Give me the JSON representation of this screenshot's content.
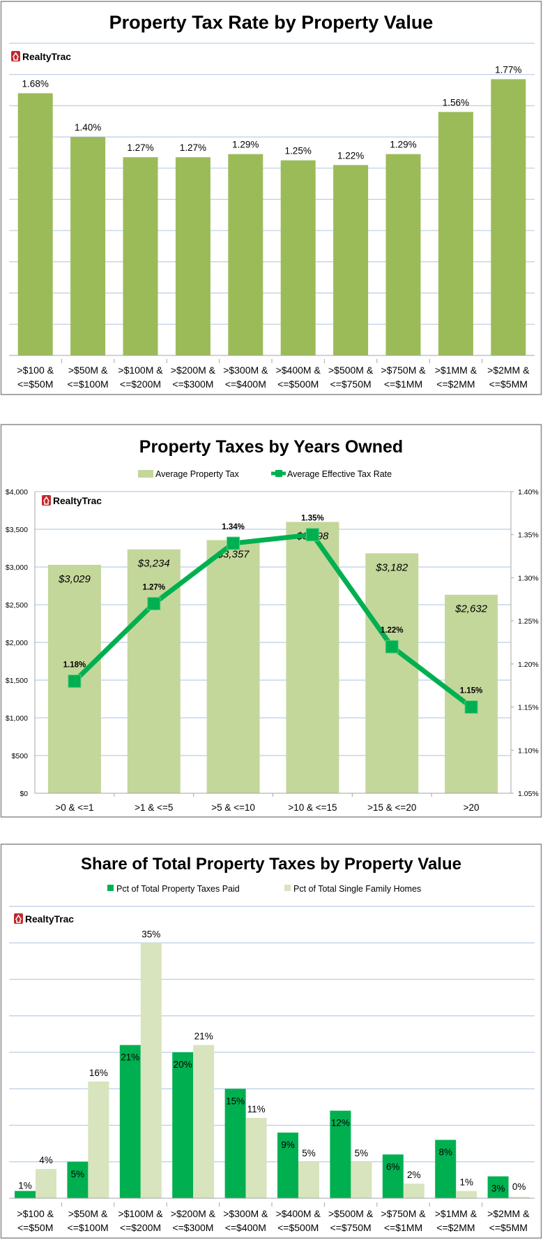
{
  "logo": {
    "text": "RealtyTrac",
    "icon": "house-icon",
    "color": "#C0282D"
  },
  "colors": {
    "gridline": "#B9CDE5",
    "axis": "#A6A6A6",
    "border": "#8C8C8C"
  },
  "chart_data": [
    {
      "type": "bar",
      "title": "Property Tax Rate by Property Value",
      "categories": [
        ">$100 & <=$50M",
        ">$50M & <=$100M",
        ">$100M & <=$200M",
        ">$200M & <=$300M",
        ">$300M & <=$400M",
        ">$400M & <=$500M",
        ">$500M & <=$750M",
        ">$750M & <=$1MM",
        ">$1MM & <=$2MM",
        ">$2MM & <=$5MM"
      ],
      "values": [
        1.68,
        1.4,
        1.27,
        1.27,
        1.29,
        1.25,
        1.22,
        1.29,
        1.56,
        1.77
      ],
      "data_labels": [
        "1.68%",
        "1.40%",
        "1.27%",
        "1.27%",
        "1.29%",
        "1.25%",
        "1.22%",
        "1.29%",
        "1.56%",
        "1.77%"
      ],
      "ylim": [
        0,
        2.0
      ],
      "ytick_step": 0.2,
      "y_axis_labels_shown": false,
      "grid": true,
      "color": "#9BBB59"
    },
    {
      "type": "bar+line",
      "title": "Property Taxes by Years Owned",
      "categories": [
        ">0 & <=1",
        ">1 & <=5",
        ">5 & <=10",
        ">10 & <=15",
        ">15 & <=20",
        ">20"
      ],
      "legend_position": "top",
      "series": [
        {
          "name": "Average Property Tax",
          "type": "bar",
          "axis": "left",
          "values": [
            3029,
            3234,
            3357,
            3598,
            3182,
            2632
          ],
          "data_labels": [
            "$3,029",
            "$3,234",
            "$3,357",
            "$3,598",
            "$3,182",
            "$2,632"
          ],
          "color": "#C4D79B"
        },
        {
          "name": "Average Effective Tax Rate",
          "type": "line",
          "axis": "right",
          "values": [
            1.18,
            1.27,
            1.34,
            1.35,
            1.22,
            1.15
          ],
          "data_labels": [
            "1.18%",
            "1.27%",
            "1.34%",
            "1.35%",
            "1.22%",
            "1.15%"
          ],
          "color": "#00B050"
        }
      ],
      "y_left": {
        "ylim": [
          0,
          4000
        ],
        "ticks": [
          "$0",
          "$500",
          "$1,000",
          "$1,500",
          "$2,000",
          "$2,500",
          "$3,000",
          "$3,500",
          "$4,000"
        ]
      },
      "y_right": {
        "ylim": [
          1.05,
          1.4
        ],
        "ticks": [
          "1.05%",
          "1.10%",
          "1.15%",
          "1.20%",
          "1.25%",
          "1.30%",
          "1.35%",
          "1.40%"
        ]
      },
      "grid": true
    },
    {
      "type": "bar",
      "title": "Share of Total Property Taxes by Property Value",
      "categories": [
        ">$100 & <=$50M",
        ">$50M & <=$100M",
        ">$100M & <=$200M",
        ">$200M & <=$300M",
        ">$300M & <=$400M",
        ">$400M & <=$500M",
        ">$500M & <=$750M",
        ">$750M & <=$1MM",
        ">$1MM & <=$2MM",
        ">$2MM & <=$5MM"
      ],
      "legend_position": "top",
      "series": [
        {
          "name": "Pct of Total Property Taxes Paid",
          "values": [
            1,
            5,
            21,
            20,
            15,
            9,
            12,
            6,
            8,
            3
          ],
          "data_labels": [
            "1%",
            "5%",
            "21%",
            "20%",
            "15%",
            "9%",
            "12%",
            "6%",
            "8%",
            "3%"
          ],
          "color": "#00B050"
        },
        {
          "name": "Pct of Total Single Family Homes",
          "values": [
            4,
            16,
            35,
            21,
            11,
            5,
            5,
            2,
            1,
            0
          ],
          "data_labels": [
            "4%",
            "16%",
            "35%",
            "21%",
            "11%",
            "5%",
            "5%",
            "2%",
            "1%",
            "0%"
          ],
          "color": "#D7E4BD"
        }
      ],
      "ylim": [
        0,
        40
      ],
      "ytick_step": 5,
      "y_axis_labels_shown": false,
      "grid": true
    }
  ]
}
